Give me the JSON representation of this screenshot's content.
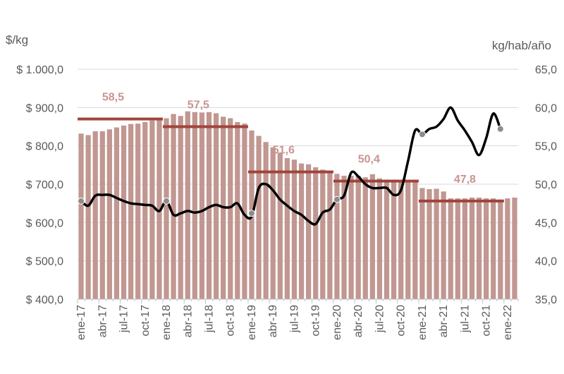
{
  "chart_data": {
    "type": "bar",
    "title": "",
    "y_left_unit": "$/kg",
    "y_right_unit": "kg/hab/año",
    "y_left_ticks": [
      "$ 400,0",
      "$ 500,0",
      "$ 600,0",
      "$ 700,0",
      "$ 800,0",
      "$ 900,0",
      "$ 1.000,0"
    ],
    "y_left_range": [
      400,
      1000
    ],
    "y_right_ticks": [
      "35,0",
      "40,0",
      "45,0",
      "50,0",
      "55,0",
      "60,0",
      "65,0"
    ],
    "y_right_range": [
      35,
      65
    ],
    "x_tick_labels": [
      "ene-17",
      "abr-17",
      "jul-17",
      "oct-17",
      "ene-18",
      "abr-18",
      "jul-18",
      "oct-18",
      "ene-19",
      "abr-19",
      "jul-19",
      "oct-19",
      "ene-20",
      "abr-20",
      "jul-20",
      "oct-20",
      "ene-21",
      "abr-21",
      "jul-21",
      "oct-21",
      "ene-22"
    ],
    "grid": "horizontal",
    "bar_color": "#c19791",
    "line_color": "#000000",
    "avg_color": "#a0443c",
    "marker_color": "#8c8c8c",
    "series": [
      {
        "axis": "left",
        "kind": "bar",
        "values": [
          832,
          828,
          838,
          838,
          843,
          848,
          853,
          857,
          858,
          862,
          866,
          868,
          872,
          883,
          878,
          890,
          888,
          887,
          888,
          885,
          876,
          872,
          862,
          858,
          840,
          826,
          810,
          796,
          782,
          768,
          764,
          754,
          752,
          744,
          738,
          730,
          727,
          722,
          722,
          722,
          718,
          726,
          715,
          712,
          712,
          710,
          709,
          710,
          690,
          687,
          688,
          681,
          663,
          663,
          663,
          665,
          665,
          663,
          663,
          660,
          663,
          665
        ]
      },
      {
        "axis": "right",
        "kind": "line",
        "values": [
          47.8,
          47.2,
          48.5,
          48.6,
          48.6,
          48.2,
          47.8,
          47.5,
          47.4,
          47.3,
          47.2,
          46.5,
          47.8,
          46.0,
          46.2,
          46.5,
          46.3,
          46.5,
          47.0,
          47.3,
          47.0,
          47.0,
          47.5,
          46.0,
          45.8,
          49.5,
          50.0,
          49.2,
          48.0,
          47.2,
          46.5,
          46.0,
          45.2,
          44.8,
          46.3,
          46.7,
          48.0,
          48.5,
          51.5,
          51.0,
          50.0,
          49.5,
          49.5,
          49.5,
          48.6,
          49.2,
          53.0,
          57.0,
          56.5,
          57.2,
          57.5,
          58.5,
          60.0,
          58.3,
          57.0,
          55.5,
          53.8,
          56.0,
          59.2,
          57.2
        ]
      }
    ],
    "period_averages": [
      {
        "label": "58,5",
        "value": 58.5
      },
      {
        "label": "57,5",
        "value": 57.5
      },
      {
        "label": "51,6",
        "value": 51.6
      },
      {
        "label": "50,4",
        "value": 50.4
      },
      {
        "label": "47,8",
        "value": 47.8
      }
    ],
    "markers": [
      47.8,
      47.8,
      46.2,
      48.0,
      56.5,
      57.2
    ]
  }
}
